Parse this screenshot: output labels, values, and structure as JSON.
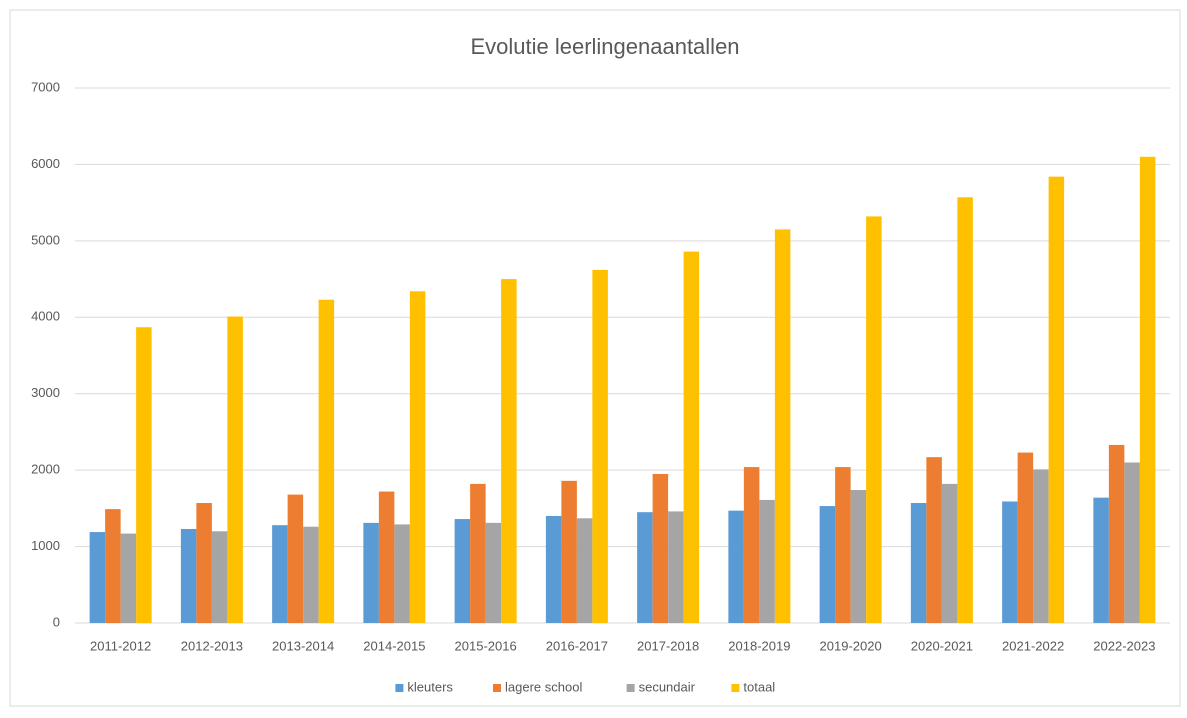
{
  "chart_data": {
    "type": "bar",
    "title": "Evolutie leerlingenaantallen",
    "categories": [
      "2011-2012",
      "2012-2013",
      "2013-2014",
      "2014-2015",
      "2015-2016",
      "2016-2017",
      "2017-2018",
      "2018-2019",
      "2019-2020",
      "2020-2021",
      "2021-2022",
      "2022-2023"
    ],
    "series": [
      {
        "name": "kleuters",
        "color": "#5b9bd5",
        "values": [
          1190,
          1230,
          1280,
          1310,
          1360,
          1400,
          1450,
          1470,
          1530,
          1570,
          1590,
          1640
        ]
      },
      {
        "name": "lagere school",
        "color": "#ed7d31",
        "values": [
          1490,
          1570,
          1680,
          1720,
          1820,
          1860,
          1950,
          2040,
          2040,
          2170,
          2230,
          2330
        ]
      },
      {
        "name": "secundair",
        "color": "#a5a5a5",
        "values": [
          1170,
          1200,
          1260,
          1290,
          1310,
          1370,
          1460,
          1610,
          1740,
          1820,
          2010,
          2100
        ]
      },
      {
        "name": "totaal",
        "color": "#ffc000",
        "values": [
          3870,
          4010,
          4230,
          4340,
          4500,
          4620,
          4860,
          5150,
          5320,
          5570,
          5840,
          6100
        ]
      }
    ],
    "ylim": [
      0,
      7000
    ],
    "yticks": [
      0,
      1000,
      2000,
      3000,
      4000,
      5000,
      6000,
      7000
    ],
    "grid": true,
    "legend": "bottom"
  }
}
